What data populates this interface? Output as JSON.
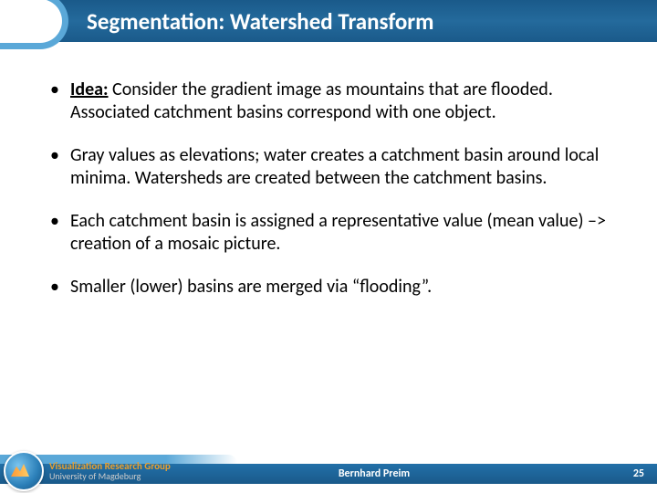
{
  "header": {
    "title": "Segmentation: Watershed Transform"
  },
  "bullets": [
    {
      "idea_label": "Idea:",
      "text": " Consider the gradient image as mountains that are flooded. Associated catchment basins correspond with one object.",
      "has_idea": true
    },
    {
      "text": "Gray values as elevations; water creates a catchment basin around local minima. Watersheds are created between the catchment basins.",
      "has_idea": false
    },
    {
      "text": "Each catchment basin is assigned a representative value (mean value) –> creation of a mosaic picture.",
      "has_idea": false
    },
    {
      "text": "Smaller (lower) basins are merged via “flooding”.",
      "has_idea": false
    }
  ],
  "footer": {
    "author": "Bernhard Preim",
    "page_number": "25",
    "logo_line1": "Visualization Research Group",
    "logo_line2": "University of Magdeburg"
  },
  "colors": {
    "header_bg": "#1f6596",
    "accent": "#5aa8d8",
    "text": "#000000",
    "footer_text": "#ffffff",
    "logo_orange": "#e8a030"
  }
}
